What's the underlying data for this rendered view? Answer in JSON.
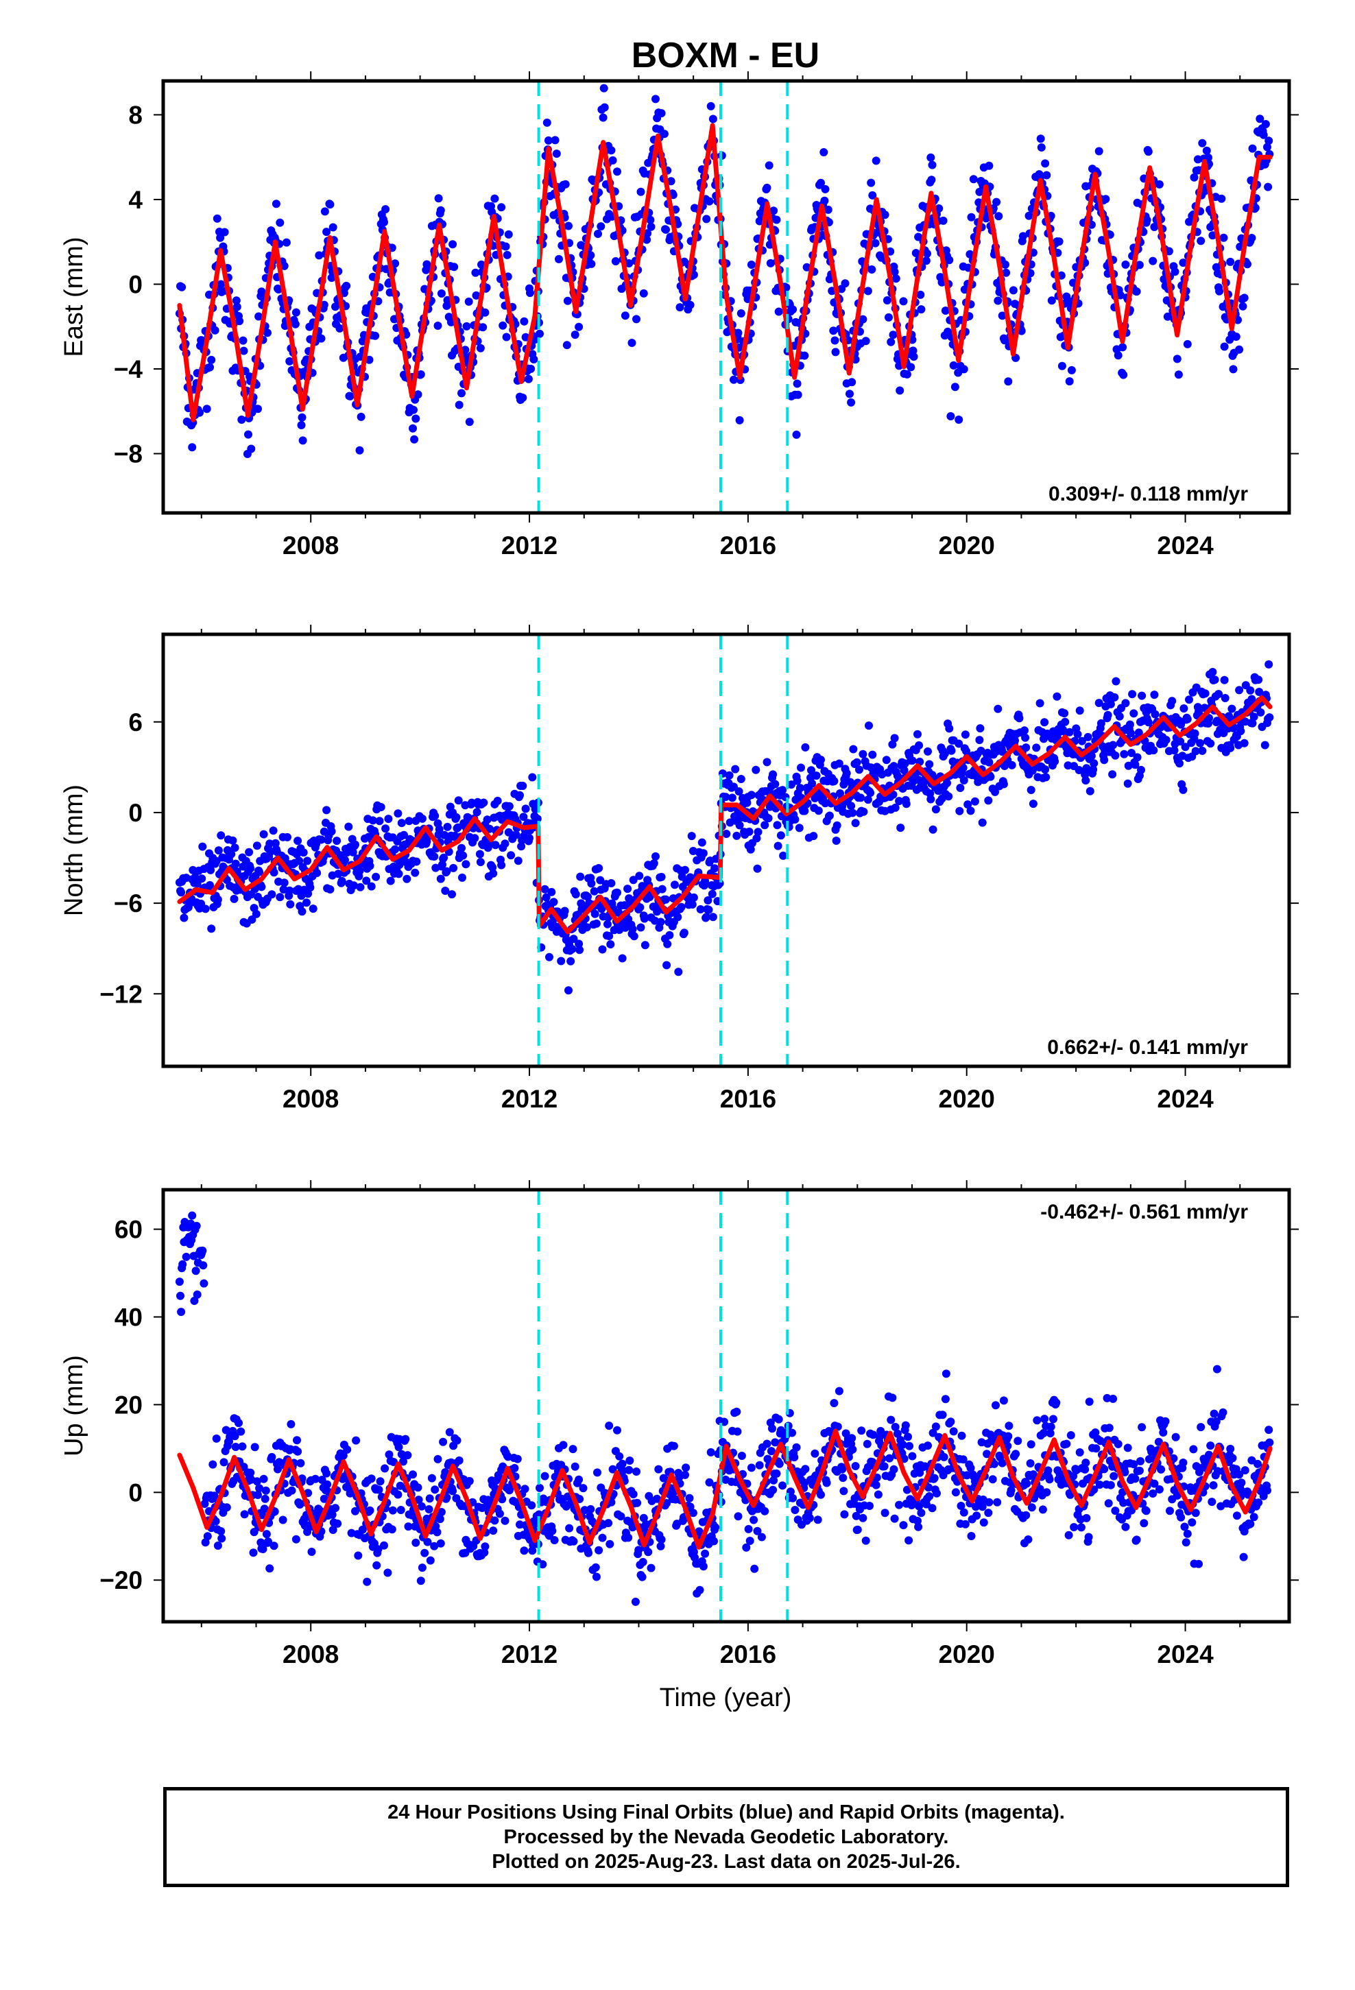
{
  "title": "BOXM - EU",
  "xlabel": "Time (year)",
  "colors": {
    "data": "#0000ff",
    "model": "#ff0000",
    "offsets": "#00e0e0",
    "frame": "#000000"
  },
  "footer": {
    "line1": "24 Hour Positions Using Final Orbits (blue) and Rapid Orbits (magenta).",
    "line2": "Processed by the Nevada Geodetic Laboratory.",
    "line3": "Plotted on 2025-Aug-23. Last data on 2025-Jul-26."
  },
  "chart_data": [
    {
      "type": "scatter",
      "title": "BOXM - EU",
      "ylabel": "East (mm)",
      "xlabel": "",
      "xlim": [
        2005.3,
        2025.9
      ],
      "ylim": [
        -10.8,
        9.6
      ],
      "xticks": [
        2008,
        2012,
        2016,
        2020,
        2024
      ],
      "yticks": [
        -8,
        -4,
        0,
        4,
        8
      ],
      "yticklabels": [
        "−8",
        "−4",
        "0",
        "4",
        "8"
      ],
      "rate_label": "0.309+/- 0.118 mm/yr",
      "rate_position": "bottom-right",
      "offsets": [
        2012.17,
        2015.5,
        2016.72
      ],
      "series": [
        {
          "name": "Model fit (red)",
          "x": [
            2005.6,
            2005.85,
            2006.1,
            2006.35,
            2006.6,
            2006.85,
            2007.1,
            2007.35,
            2007.6,
            2007.85,
            2008.1,
            2008.35,
            2008.6,
            2008.85,
            2009.1,
            2009.35,
            2009.6,
            2009.85,
            2010.1,
            2010.35,
            2010.6,
            2010.85,
            2011.1,
            2011.35,
            2011.6,
            2011.85,
            2012.1,
            2012.35,
            2012.6,
            2012.85,
            2013.1,
            2013.35,
            2013.6,
            2013.85,
            2014.1,
            2014.35,
            2014.6,
            2014.85,
            2015.1,
            2015.35,
            2015.6,
            2015.85,
            2016.1,
            2016.35,
            2016.6,
            2016.85,
            2017.1,
            2017.35,
            2017.6,
            2017.85,
            2018.1,
            2018.35,
            2018.6,
            2018.85,
            2019.1,
            2019.35,
            2019.6,
            2019.85,
            2020.1,
            2020.35,
            2020.6,
            2020.85,
            2021.1,
            2021.35,
            2021.6,
            2021.85,
            2022.1,
            2022.35,
            2022.6,
            2022.85,
            2023.1,
            2023.35,
            2023.6,
            2023.85,
            2024.1,
            2024.35,
            2024.6,
            2024.85,
            2025.1,
            2025.35,
            2025.55
          ],
          "y": [
            -1.0,
            -6.4,
            -2.6,
            1.6,
            -2.0,
            -6.2,
            -2.2,
            2.0,
            -1.8,
            -5.9,
            -1.9,
            2.2,
            -1.6,
            -5.7,
            -1.6,
            2.5,
            -1.4,
            -5.3,
            -1.3,
            2.8,
            -1.0,
            -4.9,
            -0.9,
            3.2,
            -0.8,
            -4.6,
            -1.5,
            6.4,
            2.8,
            -1.3,
            2.6,
            6.7,
            3.0,
            -1.0,
            2.9,
            7.0,
            3.4,
            -0.7,
            3.3,
            7.5,
            -0.5,
            -4.4,
            -0.3,
            3.8,
            0.0,
            -4.4,
            -0.2,
            3.7,
            0.0,
            -4.2,
            0.0,
            4.0,
            0.3,
            -3.9,
            0.3,
            4.3,
            0.6,
            -3.6,
            0.6,
            4.6,
            0.9,
            -3.3,
            0.9,
            4.9,
            1.2,
            -3.0,
            1.2,
            5.2,
            1.5,
            -2.7,
            1.5,
            5.5,
            1.8,
            -2.4,
            1.8,
            5.8,
            2.1,
            -2.1,
            2.1,
            6.0,
            6.0
          ]
        }
      ]
    },
    {
      "type": "scatter",
      "ylabel": "North (mm)",
      "xlabel": "",
      "xlim": [
        2005.3,
        2025.9
      ],
      "ylim": [
        -16.8,
        11.8
      ],
      "xticks": [
        2008,
        2012,
        2016,
        2020,
        2024
      ],
      "yticks": [
        -12,
        -6,
        0,
        6
      ],
      "yticklabels": [
        "−12",
        "−6",
        "0",
        "6"
      ],
      "rate_label": "0.662+/- 0.141 mm/yr",
      "rate_position": "bottom-right",
      "offsets": [
        2012.17,
        2015.5,
        2016.72
      ],
      "series": [
        {
          "name": "Model fit (red)",
          "x": [
            2005.6,
            2005.9,
            2006.2,
            2006.5,
            2006.8,
            2007.1,
            2007.4,
            2007.7,
            2008.0,
            2008.3,
            2008.6,
            2008.9,
            2009.2,
            2009.5,
            2009.8,
            2010.1,
            2010.4,
            2010.7,
            2011.0,
            2011.3,
            2011.6,
            2011.9,
            2012.16,
            2012.18,
            2012.4,
            2012.7,
            2013.0,
            2013.3,
            2013.6,
            2013.9,
            2014.2,
            2014.5,
            2014.8,
            2015.1,
            2015.49,
            2015.51,
            2015.8,
            2016.1,
            2016.4,
            2016.7,
            2017.0,
            2017.3,
            2017.6,
            2017.9,
            2018.2,
            2018.5,
            2018.8,
            2019.1,
            2019.4,
            2019.7,
            2020.0,
            2020.3,
            2020.6,
            2020.9,
            2021.2,
            2021.5,
            2021.8,
            2022.1,
            2022.4,
            2022.7,
            2023.0,
            2023.3,
            2023.6,
            2023.9,
            2024.2,
            2024.5,
            2024.8,
            2025.1,
            2025.4,
            2025.55
          ],
          "y": [
            -5.9,
            -5.1,
            -5.3,
            -3.7,
            -5.1,
            -4.4,
            -3.0,
            -4.4,
            -3.8,
            -2.3,
            -3.8,
            -3.2,
            -1.6,
            -3.1,
            -2.5,
            -1.0,
            -2.5,
            -1.9,
            -0.4,
            -1.8,
            -0.6,
            -1.0,
            -0.9,
            -7.5,
            -6.4,
            -7.9,
            -6.8,
            -5.6,
            -7.2,
            -6.2,
            -4.9,
            -6.6,
            -5.6,
            -4.2,
            -4.3,
            0.5,
            0.5,
            -0.4,
            1.1,
            -0.1,
            0.7,
            1.8,
            0.6,
            1.3,
            2.4,
            1.2,
            2.0,
            3.1,
            1.9,
            2.6,
            3.7,
            2.5,
            3.3,
            4.4,
            3.2,
            3.9,
            5.0,
            3.8,
            4.6,
            5.7,
            4.5,
            5.2,
            6.3,
            5.1,
            5.9,
            7.0,
            5.8,
            6.5,
            7.6,
            7.0
          ]
        }
      ]
    },
    {
      "type": "scatter",
      "ylabel": "Up (mm)",
      "xlabel": "Time (year)",
      "xlim": [
        2005.3,
        2025.9
      ],
      "ylim": [
        -29.5,
        69.0
      ],
      "xticks": [
        2008,
        2012,
        2016,
        2020,
        2024
      ],
      "yticks": [
        -20,
        0,
        20,
        40,
        60
      ],
      "yticklabels": [
        "−20",
        "0",
        "20",
        "40",
        "60"
      ],
      "rate_label": "-0.462+/- 0.561 mm/yr",
      "rate_position": "top-right",
      "offsets": [
        2012.17,
        2015.5,
        2016.72
      ],
      "series": [
        {
          "name": "Model fit (red)",
          "x": [
            2005.6,
            2005.85,
            2006.1,
            2006.35,
            2006.6,
            2006.85,
            2007.1,
            2007.35,
            2007.6,
            2007.85,
            2008.1,
            2008.35,
            2008.6,
            2008.85,
            2009.1,
            2009.35,
            2009.6,
            2009.85,
            2010.1,
            2010.35,
            2010.6,
            2010.85,
            2011.1,
            2011.35,
            2011.6,
            2011.85,
            2012.1,
            2012.35,
            2012.6,
            2012.85,
            2013.1,
            2013.35,
            2013.6,
            2013.85,
            2014.1,
            2014.35,
            2014.6,
            2014.85,
            2015.1,
            2015.35,
            2015.6,
            2015.85,
            2016.1,
            2016.35,
            2016.6,
            2016.85,
            2017.1,
            2017.35,
            2017.6,
            2017.85,
            2018.1,
            2018.35,
            2018.6,
            2018.85,
            2019.1,
            2019.35,
            2019.6,
            2019.85,
            2020.1,
            2020.35,
            2020.6,
            2020.85,
            2021.1,
            2021.35,
            2021.6,
            2021.85,
            2022.1,
            2022.35,
            2022.6,
            2022.85,
            2023.1,
            2023.35,
            2023.6,
            2023.85,
            2024.1,
            2024.35,
            2024.6,
            2024.85,
            2025.1,
            2025.35,
            2025.55
          ],
          "y": [
            8.5,
            1.0,
            -8.0,
            -1.0,
            8.0,
            0.5,
            -8.5,
            -1.2,
            7.5,
            0.0,
            -9.0,
            -1.5,
            7.0,
            -0.5,
            -9.5,
            -2.0,
            6.5,
            -1.0,
            -10.0,
            -2.5,
            6.0,
            -1.5,
            -10.5,
            -3.0,
            5.5,
            -2.0,
            -11.0,
            -3.5,
            5.0,
            -2.5,
            -11.5,
            -4.0,
            4.5,
            -3.0,
            -12.0,
            -4.5,
            4.0,
            -3.5,
            -12.5,
            -5.0,
            10.5,
            3.0,
            -3.0,
            4.0,
            11.0,
            3.5,
            -3.5,
            4.5,
            14.0,
            5.0,
            -1.0,
            6.0,
            13.5,
            4.5,
            -1.5,
            5.5,
            13.0,
            4.0,
            -2.0,
            5.0,
            12.5,
            3.5,
            -2.5,
            4.5,
            12.0,
            3.0,
            -3.0,
            4.0,
            11.5,
            2.5,
            -3.5,
            3.5,
            11.0,
            2.0,
            -4.0,
            3.0,
            10.5,
            1.5,
            -4.5,
            2.5,
            10.0
          ]
        }
      ]
    }
  ]
}
